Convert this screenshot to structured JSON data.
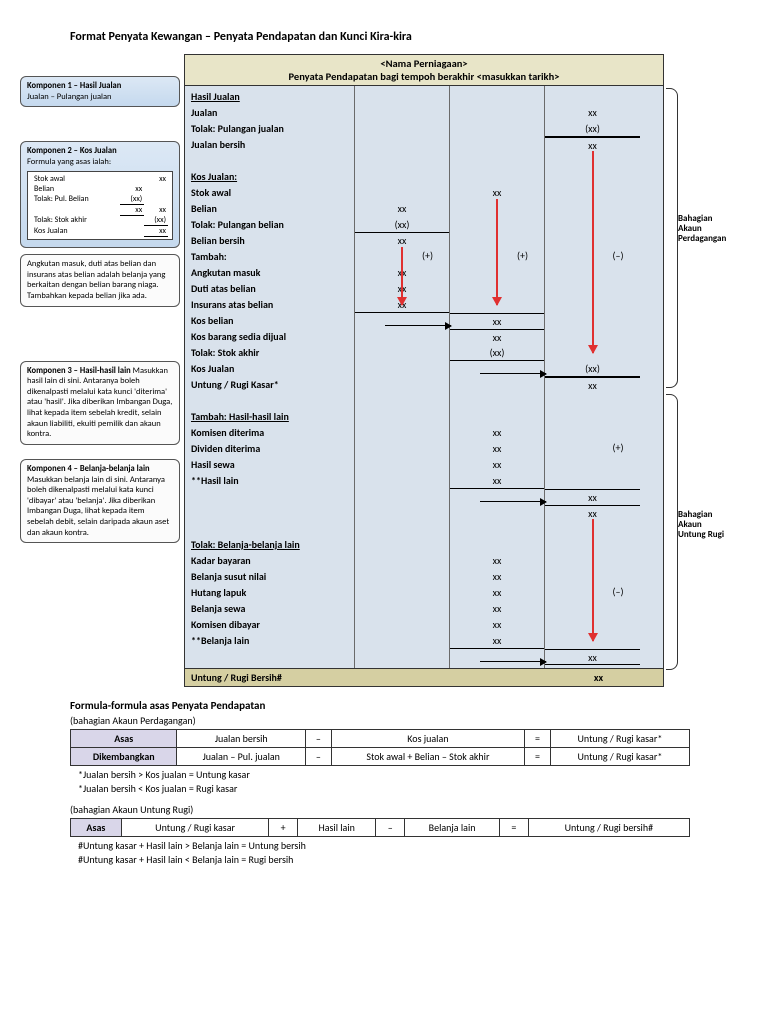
{
  "title": "Format Penyata Kewangan – Penyata Pendapatan dan Kunci Kira-kira",
  "statement": {
    "header1": "<Nama Perniagaan>",
    "header2": "Penyata Pendapatan bagi tempoh berakhir <masukkan tarikh>",
    "rows": [
      {
        "t": "Hasil Jualan",
        "b": 1,
        "u": 1
      },
      {
        "t": "Jualan",
        "b": 1
      },
      {
        "t": "Tolak: Pulangan jualan",
        "b": 1
      },
      {
        "t": "Jualan bersih",
        "b": 1
      },
      {
        "t": ""
      },
      {
        "t": "Kos Jualan:",
        "b": 1,
        "u": 1
      },
      {
        "t": "Stok awal",
        "b": 1
      },
      {
        "t": "Belian",
        "b": 1
      },
      {
        "t": "Tolak: Pulangan belian",
        "b": 1
      },
      {
        "t": "Belian bersih",
        "b": 1
      },
      {
        "t": "Tambah:",
        "b": 1
      },
      {
        "t": "Angkutan masuk",
        "b": 1
      },
      {
        "t": "Duti atas belian",
        "b": 1
      },
      {
        "t": "Insurans atas belian",
        "b": 1
      },
      {
        "t": "Kos belian",
        "b": 1
      },
      {
        "t": "Kos barang sedia dijual",
        "b": 1
      },
      {
        "t": "Tolak: Stok akhir",
        "b": 1
      },
      {
        "t": "Kos Jualan",
        "b": 1
      },
      {
        "t": "Untung / Rugi Kasar*",
        "b": 1
      },
      {
        "t": ""
      },
      {
        "t": "Tambah: Hasil-hasil lain",
        "b": 1,
        "u": 1
      },
      {
        "t": "Komisen diterima",
        "b": 1
      },
      {
        "t": "Dividen diterima",
        "b": 1
      },
      {
        "t": "Hasil sewa",
        "b": 1
      },
      {
        "t": "**Hasil lain",
        "b": 1
      },
      {
        "t": ""
      },
      {
        "t": ""
      },
      {
        "t": ""
      },
      {
        "t": "Tolak: Belanja-belanja lain",
        "b": 1,
        "u": 1
      },
      {
        "t": "Kadar bayaran",
        "b": 1
      },
      {
        "t": "Belanja susut nilai",
        "b": 1
      },
      {
        "t": "Hutang lapuk",
        "b": 1
      },
      {
        "t": "Belanja sewa",
        "b": 1
      },
      {
        "t": "Komisen dibayar",
        "b": 1
      },
      {
        "t": "**Belanja lain",
        "b": 1
      },
      {
        "t": ""
      }
    ],
    "footer_label": "Untung / Rugi Bersih#",
    "footer_val": "xx",
    "col1": [
      {
        "r": 7,
        "v": "xx"
      },
      {
        "r": 8,
        "v": "(xx)",
        "bl": 1
      },
      {
        "r": 9,
        "v": "xx"
      },
      {
        "r": 11,
        "v": "xx"
      },
      {
        "r": 12,
        "v": "xx"
      },
      {
        "r": 13,
        "v": "xx",
        "bl": 1
      }
    ],
    "col2": [
      {
        "r": 6,
        "v": "xx"
      },
      {
        "r": 14,
        "v": "xx",
        "ul": 1
      },
      {
        "r": 15,
        "v": "xx",
        "ul": 1
      },
      {
        "r": 16,
        "v": "(xx)",
        "bl": 1
      },
      {
        "r": 21,
        "v": "xx"
      },
      {
        "r": 22,
        "v": "xx"
      },
      {
        "r": 23,
        "v": "xx"
      },
      {
        "r": 24,
        "v": "xx",
        "bl": 1
      },
      {
        "r": 29,
        "v": "xx"
      },
      {
        "r": 30,
        "v": "xx"
      },
      {
        "r": 31,
        "v": "xx"
      },
      {
        "r": 32,
        "v": "xx"
      },
      {
        "r": 33,
        "v": "xx"
      },
      {
        "r": 34,
        "v": "xx",
        "bl": 1
      }
    ],
    "col3": [
      {
        "r": 1,
        "v": "xx"
      },
      {
        "r": 2,
        "v": "(xx)",
        "bl": 1
      },
      {
        "r": 3,
        "v": "xx",
        "ul": 1
      },
      {
        "r": 17,
        "v": "(xx)",
        "bl": 1
      },
      {
        "r": 18,
        "v": "xx",
        "ul": 1
      },
      {
        "r": 25,
        "v": "xx",
        "ul": 1
      },
      {
        "r": 26,
        "v": "xx",
        "ul": 1
      },
      {
        "r": 35,
        "v": "xx",
        "bl": 1,
        "ul": 1
      }
    ],
    "arrows_red": [
      {
        "col": 1,
        "from": 9,
        "to": 13
      },
      {
        "col": 2,
        "from": 6,
        "to": 13
      },
      {
        "col": 3,
        "from": 3,
        "to": 16
      },
      {
        "col": 3,
        "from": 26,
        "to": 34
      }
    ],
    "side_ops": [
      {
        "col": 1,
        "r": 10,
        "v": "(+)"
      },
      {
        "col": 2,
        "r": 10,
        "v": "(+)"
      },
      {
        "col": 3,
        "r": 10,
        "v": "(–)"
      },
      {
        "col": 3,
        "r": 22,
        "v": "(+)"
      },
      {
        "col": 3,
        "r": 31,
        "v": "(–)"
      }
    ],
    "stubs": [
      {
        "col": 1,
        "r": 14,
        "arr": 1
      },
      {
        "col": 2,
        "r": 17,
        "arr": 1
      },
      {
        "col": 2,
        "r": 25,
        "arr": 1
      },
      {
        "col": 2,
        "r": 35,
        "arr": 1
      }
    ]
  },
  "side": {
    "k1_title": "Komponen 1 – Hasil Jualan",
    "k1_line": "Jualan – Pulangan jualan",
    "k2_title": "Komponen 2 – Kos Jualan",
    "k2_line": "Formula yang asas ialah:",
    "k2_rows": [
      [
        "Stok awal",
        "",
        "xx"
      ],
      [
        "Belian",
        "xx",
        ""
      ],
      [
        "Tolak: Pul. Belian",
        "(xx)",
        ""
      ],
      [
        "",
        "xx",
        "xx"
      ],
      [
        "Tolak: Stok akhir",
        "",
        "(xx)"
      ],
      [
        "Kos Jualan",
        "",
        "xx"
      ]
    ],
    "k2_note": "Angkutan masuk, duti atas belian dan insurans atas belian adalah belanja yang berkaitan dengan belian barang niaga. Tambahkan kepada belian jika ada.",
    "k3_title": "Komponen 3 – Hasil-hasil lain",
    "k3_body": "Masukkan hasil lain di sini. Antaranya boleh dikenalpasti melalui kata kunci 'diterima' atau 'hasil'. Jika diberikan Imbangan Duga, lihat kepada item sebelah kredit, selain akaun liabiliti, ekuiti pemilik dan akaun kontra.",
    "k4_title": "Komponen 4 – Belanja-belanja lain",
    "k4_body": "Masukkan belanja lain di sini. Antaranya boleh dikenalpasti melalui kata kunci 'dibayar' atau 'belanja'. Jika diberikan Imbangan Duga, lihat kepada item sebelah debit, selain daripada akaun aset dan akaun kontra."
  },
  "rlabels": {
    "top": "Bahagian\nAkaun\nPerdagangan",
    "bot": "Bahagian\nAkaun\nUntung Rugi"
  },
  "formulas": {
    "heading": "Formula-formula asas Penyata Pendapatan",
    "sec1_title": "(bahagian Akaun Perdagangan)",
    "t1": [
      [
        "Asas",
        "Jualan bersih",
        "–",
        "Kos jualan",
        "=",
        "Untung / Rugi kasar*"
      ],
      [
        "Dikembangkan",
        "Jualan – Pul. jualan",
        "–",
        "Stok awal + Belian – Stok akhir",
        "=",
        "Untung / Rugi kasar*"
      ]
    ],
    "n1a": "*Jualan bersih > Kos jualan = Untung kasar",
    "n1b": "*Jualan bersih < Kos jualan = Rugi kasar",
    "sec2_title": "(bahagian Akaun Untung Rugi)",
    "t2": [
      [
        "Asas",
        "Untung / Rugi kasar",
        "+",
        "Hasil lain",
        "–",
        "Belanja lain",
        "=",
        "Untung / Rugi bersih#"
      ]
    ],
    "n2a": "#Untung kasar + Hasil lain > Belanja lain = Untung bersih",
    "n2b": "#Untung kasar + Hasil lain < Belanja lain = Rugi bersih"
  },
  "colors": {
    "stmt_bg": "#d9e2ec",
    "header_bg": "#e8e5c8",
    "footer_bg": "#d5cfa2",
    "arrow": "#e03030",
    "formula_head": "#d9d6e9"
  }
}
